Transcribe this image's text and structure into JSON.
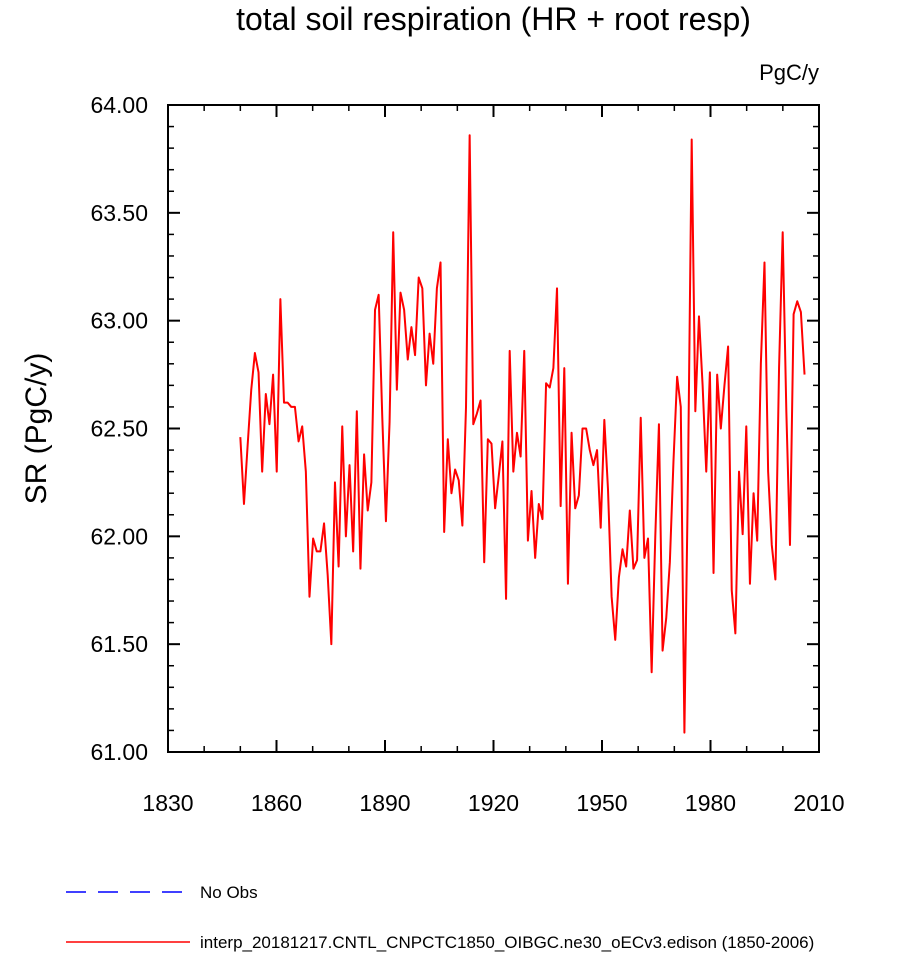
{
  "chart_data": {
    "type": "line",
    "title": "total soil respiration (HR + root resp)",
    "units": "PgC/y",
    "ylabel": "SR  (PgC/y)",
    "xlabel": "",
    "xlim": [
      1830,
      2010
    ],
    "ylim": [
      61.0,
      64.0
    ],
    "xticks": [
      1830,
      1860,
      1890,
      1920,
      1950,
      1980,
      2010
    ],
    "xtick_labels": [
      "1830",
      "1860",
      "1890",
      "1920",
      "1950",
      "1980",
      "2010"
    ],
    "yticks": [
      61.0,
      61.5,
      62.0,
      62.5,
      63.0,
      63.5,
      64.0
    ],
    "ytick_labels": [
      "61.00",
      "61.50",
      "62.00",
      "62.50",
      "63.00",
      "63.50",
      "64.00"
    ],
    "grid": false,
    "legend_position": "bottom",
    "series": [
      {
        "name": "No Obs",
        "color": "#0000ff",
        "dash": "dashed",
        "x": [],
        "values": []
      },
      {
        "name": "interp_20181217.CNTL_CNPCTC1850_OIBGC.ne30_oECv3.edison (1850-2006)",
        "color": "#ff0000",
        "dash": "solid",
        "x_start": 1850,
        "x_end": 2006,
        "values": [
          62.46,
          62.15,
          62.42,
          62.68,
          62.85,
          62.76,
          62.3,
          62.66,
          62.52,
          62.75,
          62.3,
          63.1,
          62.62,
          62.62,
          62.6,
          62.6,
          62.44,
          62.51,
          62.3,
          61.72,
          61.99,
          61.93,
          61.93,
          62.06,
          61.82,
          61.5,
          62.25,
          61.86,
          62.51,
          62.0,
          62.33,
          61.93,
          62.58,
          61.85,
          62.38,
          62.12,
          62.25,
          63.05,
          63.12,
          62.55,
          62.07,
          62.53,
          63.41,
          62.68,
          63.13,
          63.05,
          62.82,
          62.97,
          62.84,
          63.2,
          63.15,
          62.7,
          62.94,
          62.8,
          63.15,
          63.27,
          62.02,
          62.45,
          62.2,
          62.31,
          62.26,
          62.05,
          62.6,
          63.86,
          62.52,
          62.57,
          62.63,
          61.88,
          62.45,
          62.43,
          62.13,
          62.28,
          62.44,
          61.71,
          62.86,
          62.3,
          62.48,
          62.37,
          62.86,
          61.98,
          62.21,
          61.9,
          62.15,
          62.08,
          62.71,
          62.69,
          62.78,
          63.15,
          62.14,
          62.78,
          61.78,
          62.48,
          62.13,
          62.19,
          62.5,
          62.5,
          62.4,
          62.33,
          62.4,
          62.04,
          62.54,
          62.22,
          61.72,
          61.52,
          61.81,
          61.94,
          61.86,
          62.12,
          61.85,
          61.89,
          62.55,
          61.9,
          61.99,
          61.37,
          62.0,
          62.52,
          61.47,
          61.62,
          61.88,
          62.35,
          62.74,
          62.6,
          61.09,
          62.3,
          63.84,
          62.58,
          63.02,
          62.7,
          62.3,
          62.76,
          61.83,
          62.75,
          62.5,
          62.7,
          62.88,
          61.75,
          61.55,
          62.3,
          62.01,
          62.51,
          61.78,
          62.2,
          61.98,
          62.8,
          63.27,
          62.3,
          61.96,
          61.8,
          62.78,
          63.41,
          62.58,
          61.96,
          63.03,
          63.09,
          63.04,
          62.75
        ]
      }
    ]
  }
}
